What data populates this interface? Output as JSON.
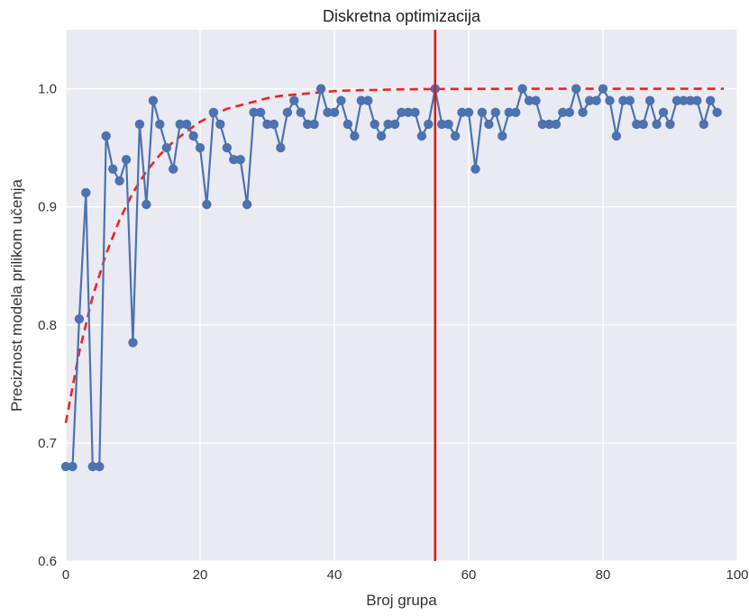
{
  "chart_data": {
    "type": "line",
    "title": "Diskretna optimizacija",
    "xlabel": "Broj grupa",
    "ylabel": "Preciznost modela prilikom učenja",
    "xlim": [
      0,
      100
    ],
    "ylim": [
      0.6,
      1.05
    ],
    "xticks": [
      0,
      20,
      40,
      60,
      80,
      100
    ],
    "xtick_labels": [
      "0",
      "20",
      "40",
      "60",
      "80",
      "100"
    ],
    "yticks": [
      0.6,
      0.7,
      0.8,
      0.9,
      1.0
    ],
    "ytick_labels": [
      "0.6",
      "0.7",
      "0.8",
      "0.9",
      "1.0"
    ],
    "grid": true,
    "background_color": "#eaeaf2",
    "series": [
      {
        "style": "solid line with circle markers",
        "color": "#4c72b0",
        "x": [
          0,
          1,
          2,
          3,
          4,
          5,
          6,
          7,
          8,
          9,
          10,
          11,
          12,
          13,
          14,
          15,
          16,
          17,
          18,
          19,
          20,
          21,
          22,
          23,
          24,
          25,
          26,
          27,
          28,
          29,
          30,
          31,
          32,
          33,
          34,
          35,
          36,
          37,
          38,
          39,
          40,
          41,
          42,
          43,
          44,
          45,
          46,
          47,
          48,
          49,
          50,
          51,
          52,
          53,
          54,
          55,
          56,
          57,
          58,
          59,
          60,
          61,
          62,
          63,
          64,
          65,
          66,
          67,
          68,
          69,
          70,
          71,
          72,
          73,
          74,
          75,
          76,
          77,
          78,
          79,
          80,
          81,
          82,
          83,
          84,
          85,
          86,
          87,
          88,
          89,
          90,
          91,
          92,
          93,
          94,
          95,
          96,
          97
        ],
        "y": [
          0.68,
          0.68,
          0.805,
          0.912,
          0.68,
          0.68,
          0.96,
          0.932,
          0.922,
          0.94,
          0.785,
          0.97,
          0.902,
          0.99,
          0.97,
          0.95,
          0.932,
          0.97,
          0.97,
          0.96,
          0.95,
          0.902,
          0.98,
          0.97,
          0.95,
          0.94,
          0.94,
          0.902,
          0.98,
          0.98,
          0.97,
          0.97,
          0.95,
          0.98,
          0.99,
          0.98,
          0.97,
          0.97,
          1.0,
          0.98,
          0.98,
          0.99,
          0.97,
          0.96,
          0.99,
          0.99,
          0.97,
          0.96,
          0.97,
          0.97,
          0.98,
          0.98,
          0.98,
          0.96,
          0.97,
          1.0,
          0.97,
          0.97,
          0.96,
          0.98,
          0.98,
          0.932,
          0.98,
          0.97,
          0.98,
          0.96,
          0.98,
          0.98,
          1.0,
          0.99,
          0.99,
          0.97,
          0.97,
          0.97,
          0.98,
          0.98,
          1.0,
          0.98,
          0.99,
          0.99,
          1.0,
          0.99,
          0.96,
          0.99,
          0.99,
          0.97,
          0.97,
          0.99,
          0.97,
          0.98,
          0.97,
          0.99,
          0.99,
          0.99,
          0.99,
          0.97,
          0.99,
          0.98
        ]
      },
      {
        "style": "dashed line",
        "color": "#ee2222",
        "x": [
          0,
          2,
          4,
          6,
          8,
          10,
          12,
          14,
          16,
          18,
          20,
          22,
          24,
          26,
          28,
          30,
          32,
          34,
          36,
          38,
          40,
          42,
          44,
          46,
          48,
          50,
          52,
          54,
          56,
          58,
          60,
          62,
          64,
          66,
          68,
          70,
          72,
          74,
          76,
          78,
          80,
          82,
          84,
          86,
          88,
          90,
          92,
          94,
          96,
          98
        ],
        "y": [
          0.717,
          0.777,
          0.824,
          0.86,
          0.889,
          0.912,
          0.93,
          0.944,
          0.955,
          0.964,
          0.972,
          0.978,
          0.983,
          0.986,
          0.989,
          0.992,
          0.994,
          0.995,
          0.996,
          0.997,
          0.998,
          0.9985,
          0.9988,
          0.999,
          0.9993,
          0.9995,
          0.9996,
          0.9997,
          0.9998,
          0.9998,
          0.9999,
          0.9999,
          0.9999,
          1.0,
          1.0,
          1.0,
          1.0,
          1.0,
          1.0,
          1.0,
          1.0,
          1.0,
          1.0,
          1.0,
          1.0,
          1.0,
          1.0,
          1.0,
          1.0,
          1.0
        ]
      }
    ],
    "vline": {
      "x": 55,
      "color": "#ee1111",
      "style": "solid"
    }
  }
}
